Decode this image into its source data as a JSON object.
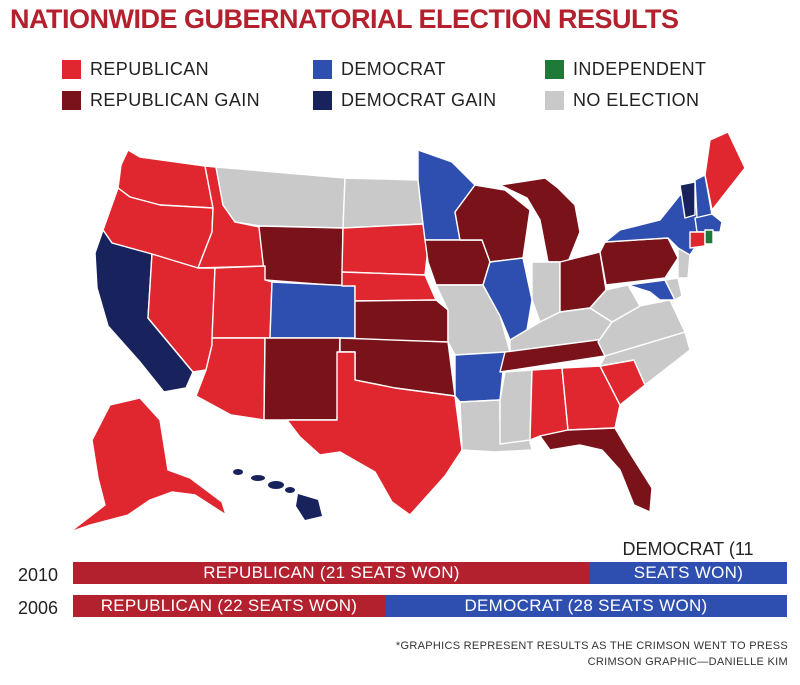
{
  "title": "NATIONWIDE GUBERNATORIAL ELECTION RESULTS",
  "colors": {
    "republican": "#e0262e",
    "republican_gain": "#7a1219",
    "democrat": "#2f4fb0",
    "democrat_gain": "#18235e",
    "independent": "#1e7a38",
    "no_election": "#c9c9c9",
    "bar_republican": "#b3202e",
    "bar_democrat": "#2f4fb0"
  },
  "legend": [
    {
      "label": "REPUBLICAN",
      "color": "#e0262e"
    },
    {
      "label": "REPUBLICAN GAIN",
      "color": "#7a1219"
    },
    {
      "label": "DEMOCRAT",
      "color": "#2f4fb0"
    },
    {
      "label": "DEMOCRAT GAIN",
      "color": "#18235e"
    },
    {
      "label": "INDEPENDENT",
      "color": "#1e7a38"
    },
    {
      "label": "NO ELECTION",
      "color": "#c9c9c9"
    }
  ],
  "bars": {
    "2010": {
      "year": "2010",
      "republican_label": "REPUBLICAN (21 SEATS WON)",
      "democrat_label_top": "DEMOCRAT (11",
      "democrat_label_bottom": "SEATS WON)",
      "republican_seats": 21,
      "democrat_seats": 11
    },
    "2006": {
      "year": "2006",
      "republican_label": "REPUBLICAN (22 SEATS WON)",
      "democrat_label": "DEMOCRAT (28 SEATS WON)",
      "republican_seats": 22,
      "democrat_seats": 28
    }
  },
  "footnote": {
    "line1": "*GRAPHICS REPRESENT RESULTS AS THE CRIMSON WENT TO PRESS",
    "line2": "CRIMSON GRAPHIC—DANIELLE KIM"
  }
}
